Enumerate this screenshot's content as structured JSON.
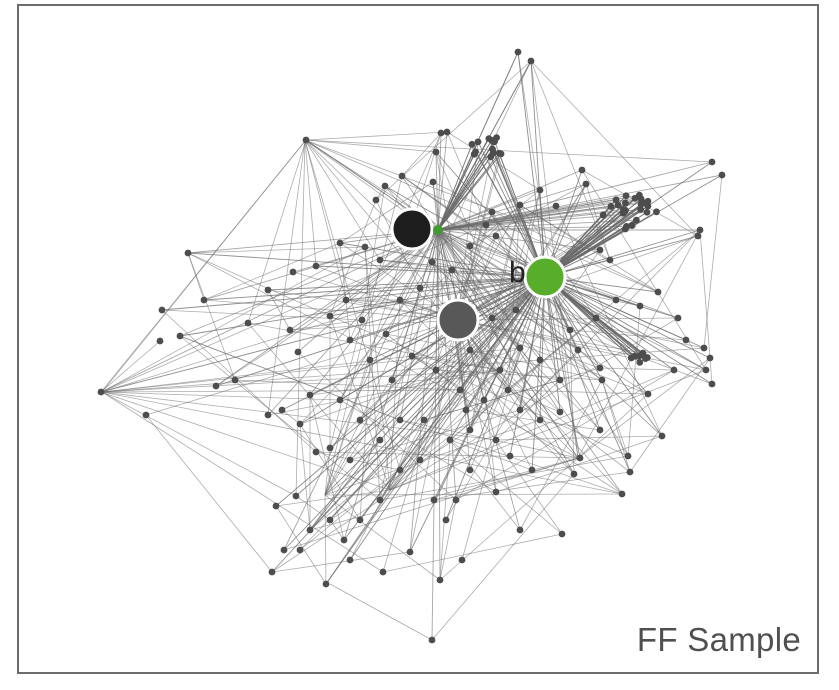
{
  "caption": "FF Sample",
  "node_label": "b",
  "colors": {
    "edge": "#6a6a6a",
    "node": "#4d4d4d",
    "hub_black": "#1e1e1e",
    "hub_gray": "#585858",
    "hub_green": "#58ad2a",
    "highlight_green": "#3f9a2f",
    "frame": "#6d6d6d"
  }
}
